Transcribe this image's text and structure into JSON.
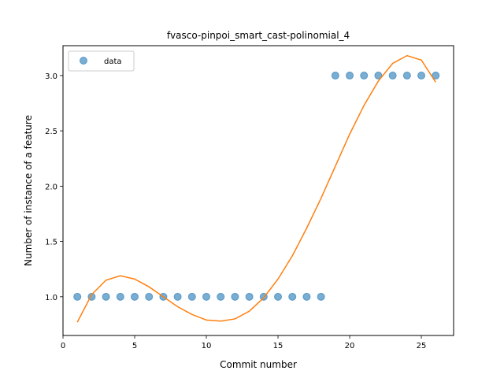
{
  "chart_data": {
    "type": "scatter",
    "title": "fvasco-pinpoi_smart_cast-polinomial_4",
    "xlabel": "Commit number",
    "ylabel": "Number of instance of a feature",
    "xlim": [
      0,
      27.25
    ],
    "ylim": [
      0.65,
      3.27
    ],
    "xticks": [
      0,
      5,
      10,
      15,
      20,
      25
    ],
    "yticks": [
      1.0,
      1.5,
      2.0,
      2.5,
      3.0
    ],
    "ytick_labels": [
      "1.0",
      "1.5",
      "2.0",
      "2.5",
      "3.0"
    ],
    "grid": false,
    "legend_placement": "upper-left",
    "series": [
      {
        "name": "data",
        "kind": "scatter",
        "color": "#1f77b4",
        "x": [
          1,
          2,
          3,
          4,
          5,
          6,
          7,
          8,
          9,
          10,
          11,
          12,
          13,
          14,
          15,
          16,
          17,
          18,
          19,
          20,
          21,
          22,
          23,
          24,
          25,
          26
        ],
        "y": [
          1,
          1,
          1,
          1,
          1,
          1,
          1,
          1,
          1,
          1,
          1,
          1,
          1,
          1,
          1,
          1,
          1,
          1,
          3,
          3,
          3,
          3,
          3,
          3,
          3,
          3
        ]
      },
      {
        "kind": "line",
        "color": "#ff7f0e",
        "x": [
          1,
          2,
          3,
          4,
          5,
          6,
          7,
          8,
          9,
          10,
          11,
          12,
          13,
          14,
          15,
          16,
          17,
          18,
          19,
          20,
          21,
          22,
          23,
          24,
          25,
          26
        ],
        "y": [
          0.77,
          1.02,
          1.15,
          1.19,
          1.16,
          1.09,
          1.0,
          0.91,
          0.84,
          0.79,
          0.78,
          0.8,
          0.87,
          0.99,
          1.16,
          1.37,
          1.62,
          1.89,
          2.18,
          2.47,
          2.73,
          2.95,
          3.11,
          3.18,
          3.14,
          2.94
        ]
      }
    ]
  }
}
